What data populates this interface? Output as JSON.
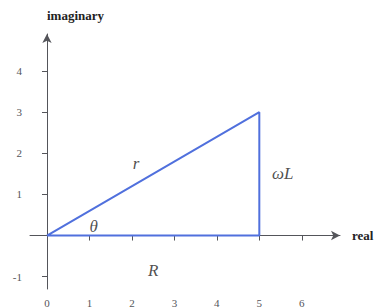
{
  "chart_data": {
    "type": "line",
    "x": [
      0,
      5,
      5,
      0
    ],
    "values": [
      0,
      0,
      3,
      0
    ],
    "xlabel": "real",
    "ylabel": "imaginary",
    "xlim": [
      -0.4,
      6.9
    ],
    "ylim": [
      -1.3,
      4.9
    ],
    "xticks": [
      0,
      1,
      2,
      3,
      4,
      5,
      6
    ],
    "yticks": [
      -1,
      1,
      2,
      3,
      4
    ],
    "grid": false,
    "annotations": [
      {
        "text": "r",
        "x": 2.1,
        "y": 1.75
      },
      {
        "text": "θ",
        "x": 1.1,
        "y": 0.22
      },
      {
        "text": "ωL",
        "x": 5.55,
        "y": 1.5
      },
      {
        "text": "R",
        "x": 2.5,
        "y": -0.85
      }
    ]
  }
}
